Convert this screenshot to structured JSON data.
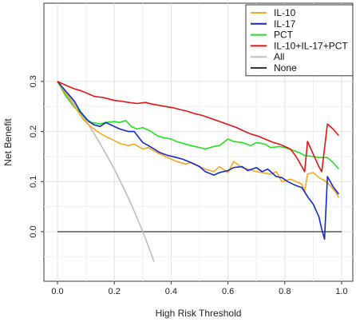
{
  "chart_data": {
    "type": "line",
    "title": "",
    "xlabel": "High Risk Threshold",
    "ylabel": "Net Benefit",
    "xlim": [
      0.0,
      1.0
    ],
    "ylim": [
      -0.065,
      0.31
    ],
    "xticks": [
      "0.0",
      "0.2",
      "0.4",
      "0.6",
      "0.8",
      "1.0"
    ],
    "yticks": [
      "0.0",
      "0.1",
      "0.2",
      "0.3"
    ],
    "grid": true,
    "legend_position": "top-right",
    "series": [
      {
        "name": "IL-10",
        "color": "#F5A623",
        "x": [
          0.0,
          0.03,
          0.06,
          0.09,
          0.11,
          0.14,
          0.17,
          0.2,
          0.22,
          0.25,
          0.27,
          0.3,
          0.32,
          0.35,
          0.38,
          0.4,
          0.42,
          0.45,
          0.47,
          0.5,
          0.52,
          0.55,
          0.57,
          0.6,
          0.62,
          0.65,
          0.67,
          0.7,
          0.72,
          0.75,
          0.77,
          0.79,
          0.82,
          0.84,
          0.86,
          0.87,
          0.88,
          0.9,
          0.92,
          0.94,
          0.96,
          0.98,
          0.99
        ],
        "y": [
          0.3,
          0.275,
          0.25,
          0.225,
          0.213,
          0.2,
          0.19,
          0.182,
          0.176,
          0.172,
          0.175,
          0.165,
          0.168,
          0.158,
          0.15,
          0.145,
          0.14,
          0.135,
          0.138,
          0.13,
          0.125,
          0.12,
          0.13,
          0.118,
          0.14,
          0.128,
          0.125,
          0.12,
          0.118,
          0.115,
          0.12,
          0.1,
          0.105,
          0.1,
          0.095,
          0.08,
          0.115,
          0.118,
          0.108,
          0.102,
          0.092,
          0.078,
          0.068
        ]
      },
      {
        "name": "IL-17",
        "color": "#1429C8",
        "x": [
          0.0,
          0.03,
          0.06,
          0.08,
          0.11,
          0.13,
          0.15,
          0.17,
          0.2,
          0.22,
          0.25,
          0.27,
          0.3,
          0.32,
          0.34,
          0.36,
          0.39,
          0.42,
          0.44,
          0.47,
          0.5,
          0.52,
          0.55,
          0.57,
          0.6,
          0.62,
          0.65,
          0.67,
          0.7,
          0.72,
          0.74,
          0.77,
          0.79,
          0.81,
          0.84,
          0.86,
          0.88,
          0.9,
          0.92,
          0.93,
          0.94,
          0.95,
          0.97,
          0.99
        ],
        "y": [
          0.3,
          0.28,
          0.26,
          0.24,
          0.22,
          0.213,
          0.21,
          0.218,
          0.21,
          0.205,
          0.2,
          0.2,
          0.178,
          0.172,
          0.165,
          0.158,
          0.152,
          0.148,
          0.145,
          0.138,
          0.13,
          0.12,
          0.113,
          0.118,
          0.122,
          0.128,
          0.13,
          0.122,
          0.128,
          0.12,
          0.125,
          0.11,
          0.108,
          0.1,
          0.092,
          0.088,
          0.07,
          0.055,
          0.03,
          0.005,
          -0.015,
          0.11,
          0.09,
          0.075
        ]
      },
      {
        "name": "PCT",
        "color": "#22E022",
        "x": [
          0.0,
          0.03,
          0.06,
          0.08,
          0.1,
          0.12,
          0.15,
          0.17,
          0.2,
          0.22,
          0.24,
          0.26,
          0.28,
          0.3,
          0.33,
          0.35,
          0.37,
          0.4,
          0.42,
          0.45,
          0.47,
          0.5,
          0.52,
          0.55,
          0.57,
          0.6,
          0.62,
          0.65,
          0.68,
          0.7,
          0.73,
          0.75,
          0.78,
          0.8,
          0.83,
          0.85,
          0.87,
          0.9,
          0.92,
          0.95,
          0.97,
          0.99
        ],
        "y": [
          0.3,
          0.27,
          0.248,
          0.238,
          0.225,
          0.218,
          0.215,
          0.218,
          0.22,
          0.218,
          0.222,
          0.21,
          0.205,
          0.208,
          0.2,
          0.192,
          0.188,
          0.185,
          0.18,
          0.175,
          0.172,
          0.168,
          0.165,
          0.17,
          0.172,
          0.185,
          0.18,
          0.178,
          0.172,
          0.178,
          0.175,
          0.168,
          0.17,
          0.168,
          0.162,
          0.158,
          0.152,
          0.15,
          0.148,
          0.148,
          0.138,
          0.125
        ]
      },
      {
        "name": "IL-10+IL-17+PCT",
        "color": "#E01414",
        "x": [
          0.0,
          0.03,
          0.06,
          0.08,
          0.11,
          0.13,
          0.16,
          0.18,
          0.2,
          0.23,
          0.25,
          0.28,
          0.31,
          0.33,
          0.36,
          0.38,
          0.41,
          0.43,
          0.46,
          0.48,
          0.51,
          0.53,
          0.56,
          0.58,
          0.61,
          0.63,
          0.66,
          0.68,
          0.71,
          0.73,
          0.76,
          0.78,
          0.8,
          0.82,
          0.84,
          0.86,
          0.87,
          0.88,
          0.9,
          0.92,
          0.93,
          0.95,
          0.97,
          0.99
        ],
        "y": [
          0.3,
          0.292,
          0.285,
          0.282,
          0.275,
          0.27,
          0.268,
          0.265,
          0.262,
          0.26,
          0.258,
          0.256,
          0.258,
          0.255,
          0.252,
          0.25,
          0.247,
          0.244,
          0.24,
          0.236,
          0.232,
          0.228,
          0.222,
          0.218,
          0.212,
          0.208,
          0.2,
          0.195,
          0.19,
          0.185,
          0.178,
          0.175,
          0.17,
          0.165,
          0.15,
          0.13,
          0.12,
          0.18,
          0.155,
          0.13,
          0.12,
          0.215,
          0.205,
          0.192
        ]
      },
      {
        "name": "All",
        "color": "#BDBDBD",
        "x": [
          0.0,
          0.05,
          0.1,
          0.15,
          0.2,
          0.25,
          0.28,
          0.3,
          0.32,
          0.34
        ],
        "y": [
          0.3,
          0.263,
          0.222,
          0.176,
          0.125,
          0.067,
          0.028,
          0.0,
          -0.029,
          -0.06
        ]
      },
      {
        "name": "None",
        "color": "#333333",
        "x": [
          0.0,
          1.0
        ],
        "y": [
          0.0,
          0.0
        ]
      }
    ]
  }
}
